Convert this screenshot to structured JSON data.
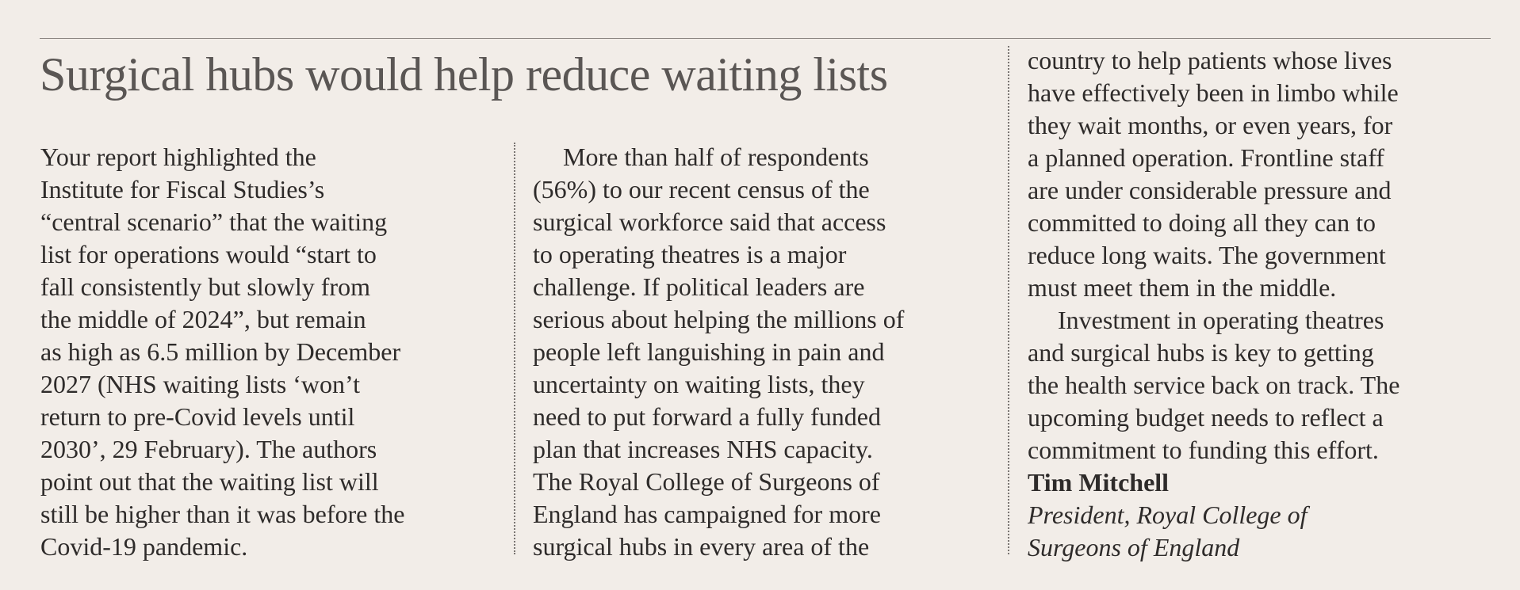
{
  "headline": "Surgical hubs would help reduce waiting lists",
  "columns": [
    {
      "paragraphs": [
        {
          "indent": false,
          "lines": [
            "Your report highlighted the",
            "Institute for Fiscal Studies’s",
            "“central scenario” that the waiting",
            "list for operations would “start to",
            "fall consistently but slowly from",
            "the middle of 2024”, but remain",
            "as high as 6.5 million by December",
            "2027 (NHS waiting lists ‘won’t",
            "return to pre-Covid levels until",
            "2030’, 29 February). The authors",
            "point out that the waiting list will",
            "still be higher than it was before the",
            "Covid-19 pandemic."
          ]
        }
      ]
    },
    {
      "paragraphs": [
        {
          "indent": true,
          "lines": [
            "More than half of respondents",
            "(56%) to our recent census of the",
            "surgical workforce said that access",
            "to operating theatres is a major",
            "challenge. If political leaders are",
            "serious about helping the millions of",
            "people left languishing in pain and",
            "uncertainty on waiting lists, they",
            "need to put forward a fully funded",
            "plan that increases NHS capacity.",
            "The Royal College of Surgeons of",
            "England has campaigned for more",
            "surgical hubs in every area of the"
          ]
        }
      ]
    },
    {
      "paragraphs": [
        {
          "indent": false,
          "lines": [
            "country to help patients whose lives",
            "have effectively been in limbo while",
            "they wait months, or even years, for",
            "a planned operation. Frontline staff",
            "are under considerable pressure and",
            "committed to doing all they can to",
            "reduce long waits. The government",
            "must meet them in the middle."
          ]
        },
        {
          "indent": true,
          "lines": [
            "Investment in operating theatres",
            "and surgical hubs is key to getting",
            "the health service back on track. The",
            "upcoming budget needs to reflect a",
            "commitment to funding this effort."
          ]
        }
      ]
    }
  ],
  "signature": {
    "name": "Tim Mitchell",
    "role": [
      "President, Royal College of",
      "Surgeons of England"
    ]
  }
}
